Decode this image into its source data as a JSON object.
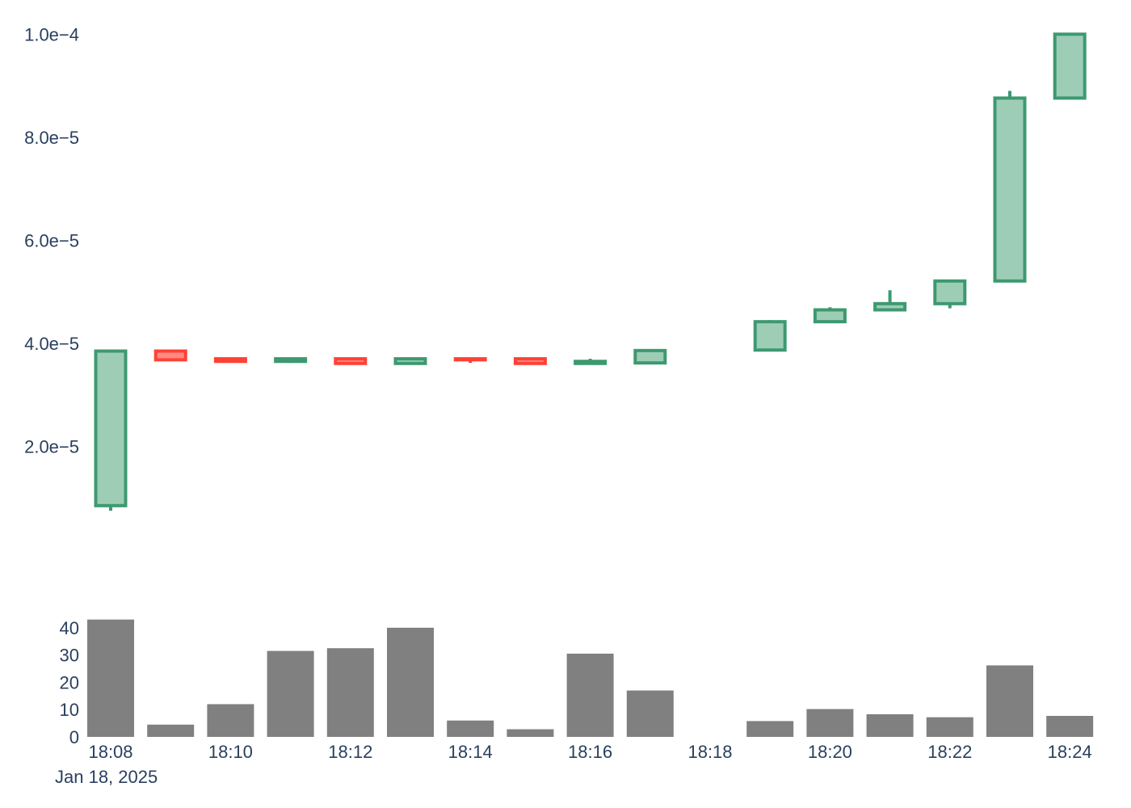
{
  "chart_data": {
    "type": "candlestick",
    "x": [
      "18:08",
      "18:09",
      "18:10",
      "18:11",
      "18:12",
      "18:13",
      "18:14",
      "18:15",
      "18:16",
      "18:17",
      "18:18",
      "18:19",
      "18:20",
      "18:21",
      "18:22",
      "18:23",
      "18:24"
    ],
    "ohlc": [
      {
        "open": 8.5e-06,
        "high": 3.85e-05,
        "low": 7.5e-06,
        "close": 3.85e-05
      },
      {
        "open": 3.85e-05,
        "high": 3.85e-05,
        "low": 3.68e-05,
        "close": 3.68e-05
      },
      {
        "open": 3.7e-05,
        "high": 3.72e-05,
        "low": 3.65e-05,
        "close": 3.65e-05
      },
      {
        "open": 3.65e-05,
        "high": 3.72e-05,
        "low": 3.62e-05,
        "close": 3.7e-05
      },
      {
        "open": 3.7e-05,
        "high": 3.7e-05,
        "low": 3.61e-05,
        "close": 3.61e-05
      },
      {
        "open": 3.61e-05,
        "high": 3.7e-05,
        "low": 3.61e-05,
        "close": 3.7e-05
      },
      {
        "open": 3.7e-05,
        "high": 3.7e-05,
        "low": 3.62e-05,
        "close": 3.68e-05
      },
      {
        "open": 3.7e-05,
        "high": 3.7e-05,
        "low": 3.61e-05,
        "close": 3.61e-05
      },
      {
        "open": 3.61e-05,
        "high": 3.7e-05,
        "low": 3.61e-05,
        "close": 3.65e-05
      },
      {
        "open": 3.62e-05,
        "high": 3.86e-05,
        "low": 3.62e-05,
        "close": 3.86e-05
      },
      null,
      {
        "open": 3.87e-05,
        "high": 4.45e-05,
        "low": 3.87e-05,
        "close": 4.42e-05
      },
      {
        "open": 4.42e-05,
        "high": 4.7e-05,
        "low": 4.42e-05,
        "close": 4.65e-05
      },
      {
        "open": 4.65e-05,
        "high": 5.03e-05,
        "low": 4.63e-05,
        "close": 4.77e-05
      },
      {
        "open": 4.77e-05,
        "high": 5.21e-05,
        "low": 4.68e-05,
        "close": 5.21e-05
      },
      {
        "open": 5.21e-05,
        "high": 8.9e-05,
        "low": 5.21e-05,
        "close": 8.76e-05
      },
      {
        "open": 8.76e-05,
        "high": 0.0001,
        "low": 8.76e-05,
        "close": 0.0001
      }
    ],
    "volume": [
      43,
      4.5,
      12,
      31.5,
      32.5,
      40,
      6,
      2.8,
      30.5,
      17,
      0,
      5.8,
      10.2,
      8.3,
      7.2,
      26.2,
      7.7
    ],
    "y_ticks": [
      "2.0e−5",
      "4.0e−5",
      "6.0e−5",
      "8.0e−5",
      "1.0e−4"
    ],
    "y_tick_values": [
      2e-05,
      4e-05,
      6e-05,
      8e-05,
      0.0001
    ],
    "ylim": [
      0,
      0.0001035
    ],
    "volume_ticks": [
      "0",
      "10",
      "20",
      "30",
      "40"
    ],
    "volume_tick_values": [
      0,
      10,
      20,
      30,
      40
    ],
    "volume_ylim": [
      0,
      45
    ],
    "x_tick_labels": [
      "18:08",
      "18:10",
      "18:12",
      "18:14",
      "18:16",
      "18:18",
      "18:20",
      "18:22",
      "18:24"
    ],
    "x_tick_indices": [
      0,
      2,
      4,
      6,
      8,
      10,
      12,
      14,
      16
    ],
    "date_label": "Jan 18, 2025",
    "colors": {
      "increasing_line": "#3d9970",
      "increasing_fill": "#9ecdb6",
      "decreasing_line": "#ff4136",
      "decreasing_fill": "#ff8a84",
      "volume_bar": "#808080",
      "axis_text": "#2a3f5f"
    }
  }
}
